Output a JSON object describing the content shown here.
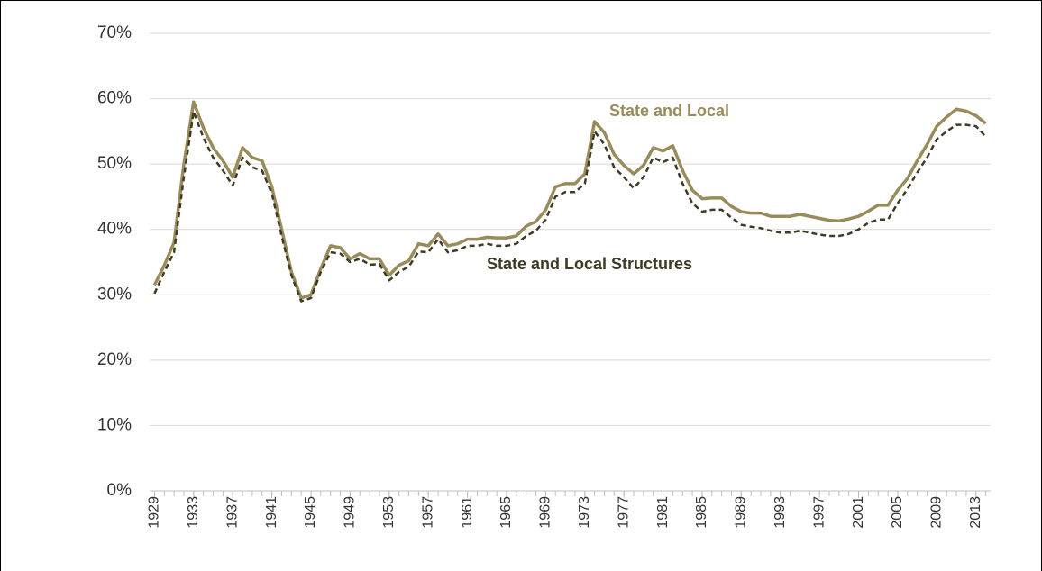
{
  "chart_data": {
    "type": "line",
    "x": [
      1929,
      1930,
      1931,
      1932,
      1933,
      1934,
      1935,
      1936,
      1937,
      1938,
      1939,
      1940,
      1941,
      1942,
      1943,
      1944,
      1945,
      1946,
      1947,
      1948,
      1949,
      1950,
      1951,
      1952,
      1953,
      1954,
      1955,
      1956,
      1957,
      1958,
      1959,
      1960,
      1961,
      1962,
      1963,
      1964,
      1965,
      1966,
      1967,
      1968,
      1969,
      1970,
      1971,
      1972,
      1973,
      1974,
      1975,
      1976,
      1977,
      1978,
      1979,
      1980,
      1981,
      1982,
      1983,
      1984,
      1985,
      1986,
      1987,
      1988,
      1989,
      1990,
      1991,
      1992,
      1993,
      1994,
      1995,
      1996,
      1997,
      1998,
      1999,
      2000,
      2001,
      2002,
      2003,
      2004,
      2005,
      2006,
      2007,
      2008,
      2009,
      2010,
      2011,
      2012,
      2013,
      2014
    ],
    "xlim": [
      1928.5,
      2014.5
    ],
    "xticks": [
      1929,
      1933,
      1937,
      1941,
      1945,
      1949,
      1953,
      1957,
      1961,
      1965,
      1969,
      1973,
      1977,
      1981,
      1985,
      1989,
      1993,
      1997,
      2001,
      2005,
      2009,
      2013
    ],
    "ylim": [
      0,
      70
    ],
    "yticks": [
      {
        "value": 0,
        "label": "0%"
      },
      {
        "value": 10,
        "label": "10%"
      },
      {
        "value": 20,
        "label": "20%"
      },
      {
        "value": 30,
        "label": "30%"
      },
      {
        "value": 40,
        "label": "40%"
      },
      {
        "value": 50,
        "label": "50%"
      },
      {
        "value": 60,
        "label": "60%"
      },
      {
        "value": 70,
        "label": "70%"
      }
    ],
    "grid": true,
    "series": [
      {
        "name": "State and Local",
        "color": "#998c5b",
        "dashed": false,
        "values": [
          31.5,
          34.5,
          38,
          50,
          59.5,
          55.5,
          52.5,
          50.5,
          48,
          52.5,
          51,
          50.5,
          46.5,
          40,
          33.5,
          29.5,
          30,
          34,
          37.5,
          37.2,
          35.5,
          36.3,
          35.5,
          35.5,
          33,
          34.5,
          35.2,
          37.8,
          37.5,
          39.3,
          37.5,
          37.8,
          38.5,
          38.5,
          38.8,
          38.7,
          38.7,
          39,
          40.5,
          41.2,
          43,
          46.5,
          47,
          47,
          48.5,
          56.5,
          54.8,
          51.5,
          49.8,
          48.5,
          49.8,
          52.5,
          52,
          52.8,
          49,
          46,
          44.7,
          44.8,
          44.8,
          43.5,
          42.7,
          42.5,
          42.5,
          42,
          42,
          42,
          42.3,
          42,
          41.7,
          41.4,
          41.3,
          41.6,
          42,
          42.8,
          43.7,
          43.7,
          46,
          47.8,
          50.5,
          53,
          55.8,
          57.2,
          58.4,
          58.1,
          57.4,
          56.2
        ]
      },
      {
        "name": "State and Local Structures",
        "color": "#3f3a26",
        "dashed": true,
        "values": [
          30.2,
          33.5,
          36.5,
          48,
          58,
          54,
          51,
          49,
          46.7,
          51,
          49.5,
          49,
          45.5,
          39,
          33,
          29,
          29.5,
          33.5,
          36.5,
          36.3,
          35,
          35.5,
          34.6,
          34.7,
          32.2,
          33.5,
          34.3,
          36.6,
          36.5,
          38.5,
          36.5,
          36.8,
          37.5,
          37.5,
          37.8,
          37.5,
          37.5,
          37.8,
          39,
          39.8,
          41.5,
          45,
          45.7,
          45.7,
          47,
          55,
          53,
          49.5,
          48,
          46.3,
          48,
          51,
          50.3,
          51,
          47,
          44,
          42.7,
          43,
          43,
          41.8,
          40.7,
          40.4,
          40.2,
          39.8,
          39.5,
          39.5,
          39.8,
          39.5,
          39.2,
          39,
          39,
          39.3,
          40,
          41,
          41.5,
          41.5,
          44,
          46.2,
          48.7,
          51,
          53.8,
          55,
          56,
          56,
          55.8,
          54.2
        ]
      }
    ]
  }
}
